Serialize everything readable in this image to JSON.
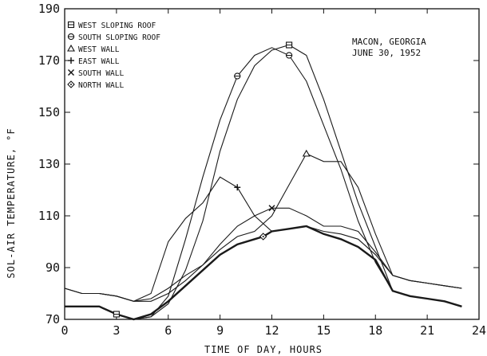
{
  "chart_data": {
    "type": "line",
    "xlabel": "TIME OF DAY, HOURS",
    "ylabel": "SOL-AIR TEMPERATURE, °F",
    "xlim": [
      0,
      24
    ],
    "ylim": [
      70,
      190
    ],
    "xticks": [
      0,
      3,
      6,
      9,
      12,
      15,
      18,
      21,
      24
    ],
    "yticks": [
      70,
      90,
      110,
      130,
      150,
      170,
      190
    ],
    "annotation": [
      "MACON, GEORGIA",
      "JUNE 30, 1952"
    ],
    "grid": false,
    "legend_position": "top-left",
    "series": [
      {
        "name": "WEST SLOPING ROOF",
        "marker": "square",
        "marker_x": [
          3,
          13
        ],
        "x": [
          0,
          1,
          2,
          3,
          4,
          5,
          6,
          7,
          8,
          9,
          10,
          11,
          12,
          13,
          14,
          15,
          16,
          17,
          18,
          19,
          20,
          21,
          22,
          23
        ],
        "y": [
          75,
          75,
          75,
          72,
          70,
          71,
          76,
          89,
          108,
          135,
          155,
          168,
          174,
          176,
          172,
          155,
          135,
          115,
          98,
          81,
          79,
          78,
          77,
          75
        ]
      },
      {
        "name": "SOUTH SLOPING ROOF",
        "marker": "circle",
        "marker_x": [
          10,
          13
        ],
        "x": [
          0,
          1,
          2,
          3,
          4,
          5,
          6,
          7,
          8,
          9,
          10,
          11,
          12,
          13,
          14,
          15,
          16,
          17,
          18,
          19,
          20,
          21,
          22,
          23
        ],
        "y": [
          75,
          75,
          75,
          72,
          70,
          71,
          79,
          101,
          125,
          147,
          164,
          172,
          175,
          172,
          162,
          145,
          128,
          108,
          92,
          81,
          79,
          78,
          77,
          75
        ]
      },
      {
        "name": "WEST WALL",
        "marker": "triangle",
        "marker_x": [
          14
        ],
        "x": [
          0,
          1,
          2,
          3,
          4,
          5,
          6,
          7,
          8,
          9,
          10,
          11,
          12,
          13,
          14,
          15,
          16,
          17,
          18,
          19,
          20,
          21,
          22,
          23
        ],
        "y": [
          82,
          80,
          80,
          79,
          77,
          78,
          82,
          87,
          91,
          97,
          102,
          104,
          110,
          122,
          134,
          131,
          131,
          121,
          103,
          87,
          85,
          84,
          83,
          82
        ]
      },
      {
        "name": "EAST WALL",
        "marker": "plus",
        "marker_x": [
          10
        ],
        "x": [
          0,
          1,
          2,
          3,
          4,
          5,
          6,
          7,
          8,
          9,
          10,
          11,
          12,
          13,
          14,
          15,
          16,
          17,
          18,
          19,
          20,
          21,
          22,
          23
        ],
        "y": [
          82,
          80,
          80,
          79,
          77,
          80,
          100,
          109,
          115,
          125,
          121,
          110,
          104,
          105,
          106,
          104,
          103,
          101,
          95,
          87,
          85,
          84,
          83,
          82
        ]
      },
      {
        "name": "SOUTH WALL",
        "marker": "x",
        "marker_x": [
          12
        ],
        "x": [
          0,
          1,
          2,
          3,
          4,
          5,
          6,
          7,
          8,
          9,
          10,
          11,
          12,
          13,
          14,
          15,
          16,
          17,
          18,
          19,
          20,
          21,
          22,
          23
        ],
        "y": [
          82,
          80,
          80,
          79,
          77,
          77,
          80,
          85,
          91,
          99,
          106,
          110,
          113,
          113,
          110,
          106,
          106,
          104,
          96,
          87,
          85,
          84,
          83,
          82
        ]
      },
      {
        "name": "NORTH WALL",
        "marker": "diamond",
        "marker_x": [
          11.5
        ],
        "bold": true,
        "x": [
          0,
          1,
          2,
          3,
          4,
          5,
          6,
          7,
          8,
          9,
          10,
          11,
          11.5,
          12,
          13,
          14,
          15,
          16,
          17,
          18,
          19,
          20,
          21,
          22,
          23
        ],
        "y": [
          75,
          75,
          75,
          72,
          70,
          72,
          77,
          83,
          89,
          95,
          99,
          101,
          102,
          104,
          105,
          106,
          103,
          101,
          98,
          93,
          81,
          79,
          78,
          77,
          75
        ]
      }
    ]
  }
}
